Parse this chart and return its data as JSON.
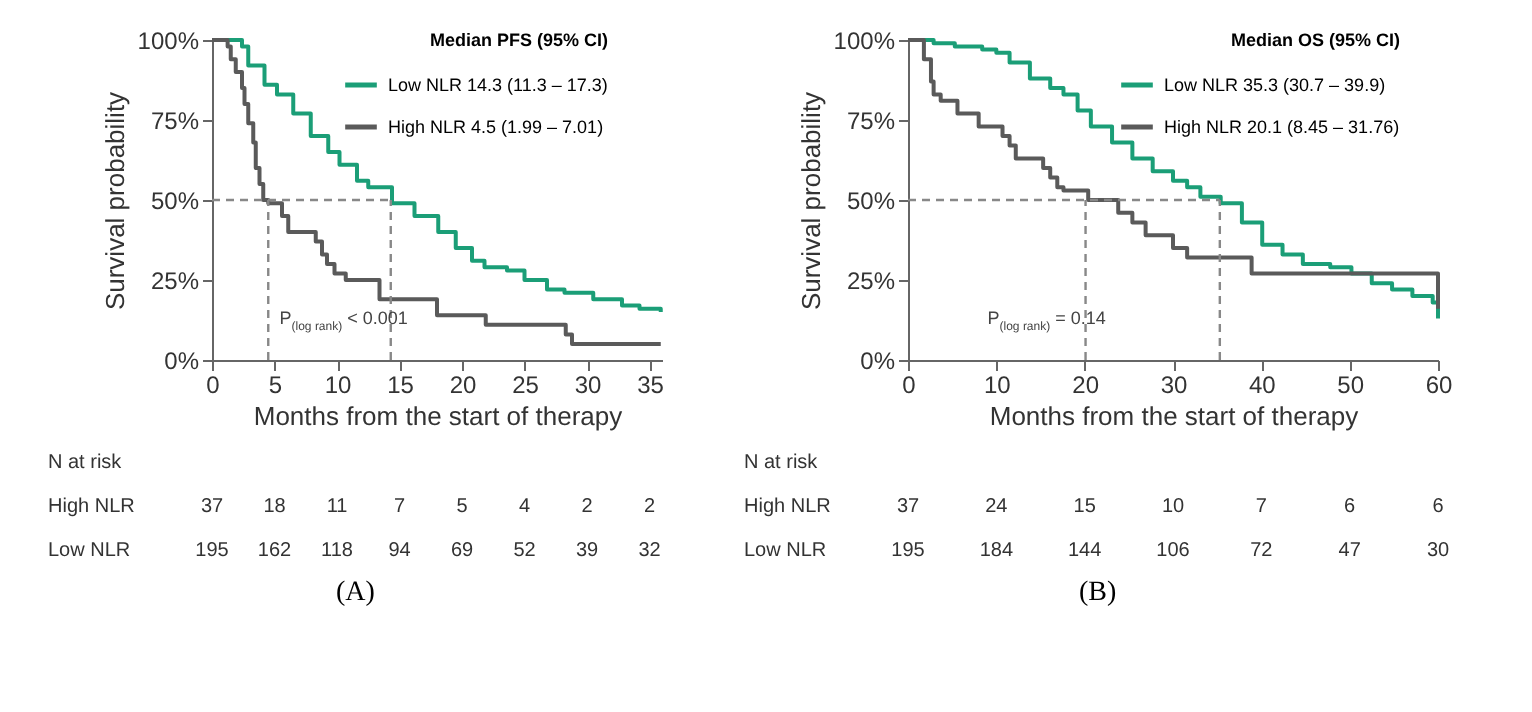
{
  "chart_data": [
    {
      "type": "step",
      "title": "(A)",
      "xlabel": "Months from the start of therapy",
      "ylabel": "Survival probability",
      "legend_title": "Median PFS (95% CI)",
      "legend": "top right",
      "grid": false,
      "xlim": [
        0,
        36
      ],
      "xticks": [
        0,
        5,
        10,
        15,
        20,
        25,
        30,
        35
      ],
      "ylim": [
        0,
        100
      ],
      "yticks": [
        {
          "value": 0,
          "label": "0%"
        },
        {
          "value": 25,
          "label": "25%"
        },
        {
          "value": 50,
          "label": "50%"
        },
        {
          "value": 75,
          "label": "75%"
        },
        {
          "value": 100,
          "label": "100%"
        }
      ],
      "series": [
        {
          "name": "Low NLR 14.3 (11.3 – 17.3)",
          "color": "#1b9e77",
          "x": [
            0,
            1.9,
            2.4,
            2.9,
            4.2,
            5.2,
            6.5,
            7.9,
            9.3,
            10.2,
            11.6,
            12.5,
            14.4,
            16.2,
            18.1,
            19.5,
            20.8,
            21.8,
            23.6,
            25,
            26.8,
            28.2,
            30.5,
            32.8,
            34.2,
            35.9
          ],
          "values": [
            100,
            100,
            98,
            92,
            86,
            83,
            77,
            70,
            65,
            61,
            56,
            54,
            49,
            45,
            40,
            35,
            31,
            29,
            28,
            25,
            22,
            21,
            19,
            17,
            16,
            15
          ]
        },
        {
          "name": "High NLR 4.5 (1.99 – 7.01)",
          "color": "#5a5a5a",
          "x": [
            0,
            1.25,
            1.5,
            1.9,
            2.4,
            2.6,
            2.9,
            3.3,
            3.5,
            3.8,
            4.1,
            4.5,
            5.6,
            6.1,
            8.3,
            8.8,
            9.2,
            9.8,
            10.7,
            13.4,
            18,
            21.9,
            28.3,
            28.8,
            35.9
          ],
          "values": [
            100,
            98,
            94,
            90,
            85,
            80,
            74,
            68,
            60,
            55,
            50,
            49,
            45,
            40,
            37,
            33,
            30,
            27,
            25,
            19,
            14,
            11,
            8,
            5,
            5
          ]
        }
      ],
      "ref_lines": [
        {
          "axis": "y",
          "value": 50,
          "color": "#888888",
          "line_style": "dashed"
        },
        {
          "axis": "x",
          "value": 4.5,
          "color": "#888888",
          "line_style": "dashed"
        },
        {
          "axis": "x",
          "value": 14.3,
          "color": "#888888",
          "line_style": "dashed"
        }
      ],
      "annotations": [
        "P$_{(log rank)}$ < 0.001",
        "N at risk",
        "High NLR",
        "37",
        "18",
        "11",
        "7",
        "5",
        "4",
        "2",
        "2",
        "Low NLR",
        "195",
        "162",
        "118",
        "94",
        "69",
        "52",
        "39",
        "32"
      ]
    },
    {
      "type": "step",
      "title": "(B)",
      "xlabel": "Months from the start of therapy",
      "ylabel": "Survival probability",
      "legend_title": "Median OS (95% CI)",
      "legend": "top right",
      "grid": false,
      "xlim": [
        0,
        60
      ],
      "xticks": [
        0,
        10,
        20,
        30,
        40,
        50,
        60
      ],
      "ylim": [
        0,
        100
      ],
      "yticks": [
        {
          "value": 0,
          "label": "0%"
        },
        {
          "value": 25,
          "label": "25%"
        },
        {
          "value": 50,
          "label": "50%"
        },
        {
          "value": 75,
          "label": "75%"
        },
        {
          "value": 100,
          "label": "100%"
        }
      ],
      "series": [
        {
          "name": "Low NLR 35.3 (30.7 – 39.9)",
          "color": "#1b9e77",
          "x": [
            0,
            2.9,
            5.3,
            8.4,
            10,
            11.5,
            13.8,
            16.1,
            17.6,
            19.2,
            20.7,
            23.1,
            25.4,
            27.7,
            30,
            31.6,
            33.1,
            35.4,
            37.8,
            40.1,
            42.4,
            44.7,
            47.8,
            50.2,
            52.5,
            54.8,
            57.1,
            59.4,
            60
          ],
          "values": [
            100,
            99,
            98,
            97,
            96,
            93,
            88,
            85,
            83,
            78,
            73,
            68,
            63,
            59,
            56,
            54,
            51,
            49,
            43,
            36,
            33,
            30,
            29,
            27,
            24,
            22,
            20,
            18,
            13
          ]
        },
        {
          "name": "High NLR 20.1 (8.45 – 31.76)",
          "color": "#5a5a5a",
          "x": [
            0,
            1.8,
            2.6,
            2.9,
            3.7,
            5.6,
            8,
            10.7,
            11.5,
            12.2,
            15.3,
            16.1,
            16.9,
            17.6,
            20.4,
            23.8,
            25.4,
            26.9,
            30,
            31.6,
            38.9,
            60
          ],
          "values": [
            100,
            94,
            87,
            83,
            81,
            77,
            73,
            70,
            67,
            63,
            60,
            57,
            54,
            53,
            50,
            46,
            43,
            39,
            35,
            32,
            27,
            16
          ]
        }
      ],
      "ref_lines": [
        {
          "axis": "y",
          "value": 50,
          "color": "#888888",
          "line_style": "dashed"
        },
        {
          "axis": "x",
          "value": 20.1,
          "color": "#888888",
          "line_style": "dashed"
        },
        {
          "axis": "x",
          "value": 35.3,
          "color": "#888888",
          "line_style": "dashed"
        }
      ],
      "annotations": [
        "P$_{(log rank)}$ = 0.14",
        "N at risk",
        "High NLR",
        "37",
        "24",
        "15",
        "10",
        "7",
        "6",
        "6",
        "Low NLR",
        "195",
        "184",
        "144",
        "106",
        "72",
        "47",
        "30"
      ]
    }
  ]
}
